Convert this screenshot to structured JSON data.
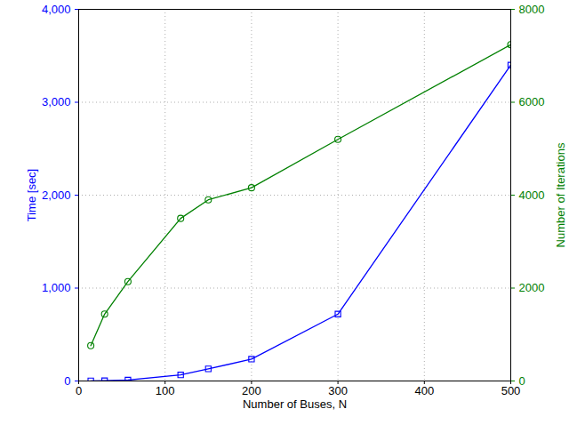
{
  "chart_data": {
    "type": "line",
    "x_label": "Number of Buses, N",
    "y_label": "Time [sec]",
    "y2_label": "Number of Iterations",
    "x": [
      14,
      30,
      57,
      118,
      150,
      200,
      300,
      500
    ],
    "series": [
      {
        "name": "Time [sec]",
        "color": "#0000ff",
        "marker": "square",
        "values": [
          1,
          3,
          10,
          65,
          130,
          235,
          720,
          3400
        ]
      },
      {
        "name": "Number of Iterations",
        "color": "#008000",
        "marker": "circle",
        "axis": "y2",
        "values": [
          760,
          1440,
          2140,
          3500,
          3900,
          4160,
          5200,
          7240
        ]
      }
    ],
    "xlim": [
      0,
      500
    ],
    "xticks": [
      0,
      100,
      200,
      300,
      400,
      500
    ],
    "ylim": [
      0,
      4000
    ],
    "yticks": [
      0,
      1000,
      2000,
      3000,
      4000
    ],
    "y2lim": [
      0,
      8000
    ],
    "y2ticks": [
      0,
      2000,
      4000,
      6000,
      8000
    ],
    "grid": true
  }
}
